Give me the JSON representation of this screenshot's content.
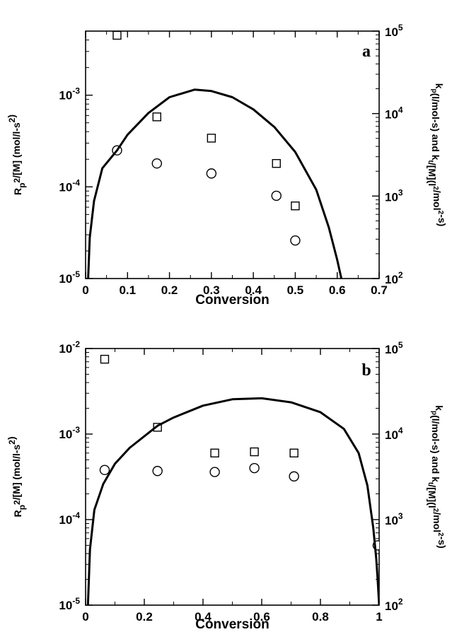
{
  "chart_data": [
    {
      "type": "scatter",
      "panel_label": "a",
      "xlabel": "Conversion",
      "ylabel": "R_p^2/[M]  (mol/l-s^2)",
      "ylabel_right": "k_p (l/mol-s)  and k_t/[M] (l^2/mol^2-s)",
      "xlim": [
        0,
        0.7
      ],
      "x_ticks": [
        0,
        0.1,
        0.2,
        0.3,
        0.4,
        0.5,
        0.6,
        0.7
      ],
      "x_tick_labels": [
        "0",
        "0.1",
        "0.2",
        "0.3",
        "0.4",
        "0.5",
        "0.6",
        "0.7"
      ],
      "ylim": [
        1e-05,
        0.005
      ],
      "y_scale": "log",
      "y_ticks": [
        1e-05,
        0.0001,
        0.001
      ],
      "y_tick_bases": [
        "10",
        "10",
        "10"
      ],
      "y_tick_exps": [
        "-5",
        "-4",
        "-3"
      ],
      "ylim_right": [
        100,
        100000
      ],
      "y_right_ticks": [
        100,
        1000,
        10000,
        100000
      ],
      "y_right_tick_bases": [
        "10",
        "10",
        "10",
        "10"
      ],
      "y_right_tick_exps": [
        "2",
        "3",
        "4",
        "5"
      ],
      "series": [
        {
          "marker": "circle",
          "axis": "left",
          "x": [
            0.075,
            0.17,
            0.3,
            0.455,
            0.5
          ],
          "y": [
            0.00025,
            0.00018,
            0.00014,
            8e-05,
            2.6e-05
          ]
        },
        {
          "marker": "square",
          "axis": "left",
          "x": [
            0.075,
            0.17,
            0.3,
            0.455,
            0.5
          ],
          "y": [
            0.0045,
            0.00058,
            0.00034,
            0.00018,
            6.2e-05
          ]
        },
        {
          "marker": "line",
          "axis": "left",
          "x": [
            0.006,
            0.01,
            0.02,
            0.04,
            0.075,
            0.1,
            0.15,
            0.2,
            0.26,
            0.3,
            0.35,
            0.4,
            0.45,
            0.5,
            0.55,
            0.58,
            0.6,
            0.61
          ],
          "y": [
            1e-05,
            2.8e-05,
            7e-05,
            0.00016,
            0.00025,
            0.00037,
            0.00064,
            0.00095,
            0.00115,
            0.00111,
            0.00095,
            0.0007,
            0.00045,
            0.00024,
            9.3e-05,
            3.6e-05,
            1.6e-05,
            1e-05
          ]
        }
      ]
    },
    {
      "type": "scatter",
      "panel_label": "b",
      "xlabel": "Conversion",
      "ylabel": "R_p^2/[M]  (mol/l-s^2)",
      "ylabel_right": "k_p (l/mol-s)  and k_t/[M] (l^2/mol^2-s)",
      "xlim": [
        0,
        1
      ],
      "x_ticks": [
        0,
        0.2,
        0.4,
        0.6,
        0.8,
        1
      ],
      "x_tick_labels": [
        "0",
        "0.2",
        "0.4",
        "0.6",
        "0.8",
        "1"
      ],
      "ylim": [
        1e-05,
        0.01
      ],
      "y_scale": "log",
      "y_ticks": [
        1e-05,
        0.0001,
        0.001,
        0.01
      ],
      "y_tick_bases": [
        "10",
        "10",
        "10",
        "10"
      ],
      "y_tick_exps": [
        "-5",
        "-4",
        "-3",
        "-2"
      ],
      "ylim_right": [
        100,
        100000
      ],
      "y_right_ticks": [
        100,
        1000,
        10000,
        100000
      ],
      "y_right_tick_bases": [
        "10",
        "10",
        "10",
        "10"
      ],
      "y_right_tick_exps": [
        "2",
        "3",
        "4",
        "5"
      ],
      "series": [
        {
          "marker": "circle",
          "axis": "left",
          "x": [
            0.065,
            0.245,
            0.44,
            0.575,
            0.71,
            0.995
          ],
          "y": [
            0.00038,
            0.00037,
            0.00036,
            0.0004,
            0.00032,
            5e-05
          ]
        },
        {
          "marker": "square",
          "axis": "left",
          "x": [
            0.065,
            0.245,
            0.44,
            0.575,
            0.71
          ],
          "y": [
            0.0075,
            0.0012,
            0.0006,
            0.00062,
            0.0006
          ]
        },
        {
          "marker": "line",
          "axis": "left",
          "x": [
            0.008,
            0.015,
            0.03,
            0.06,
            0.1,
            0.15,
            0.245,
            0.3,
            0.4,
            0.5,
            0.6,
            0.7,
            0.8,
            0.88,
            0.93,
            0.96,
            0.98,
            0.99,
            0.995,
            1.0
          ],
          "y": [
            1e-05,
            4.5e-05,
            0.00013,
            0.00026,
            0.00045,
            0.00069,
            0.00125,
            0.00156,
            0.00215,
            0.00255,
            0.00262,
            0.00235,
            0.0018,
            0.00115,
            0.0006,
            0.00025,
            8e-05,
            3.5e-05,
            2e-05,
            1e-05
          ]
        }
      ]
    }
  ]
}
